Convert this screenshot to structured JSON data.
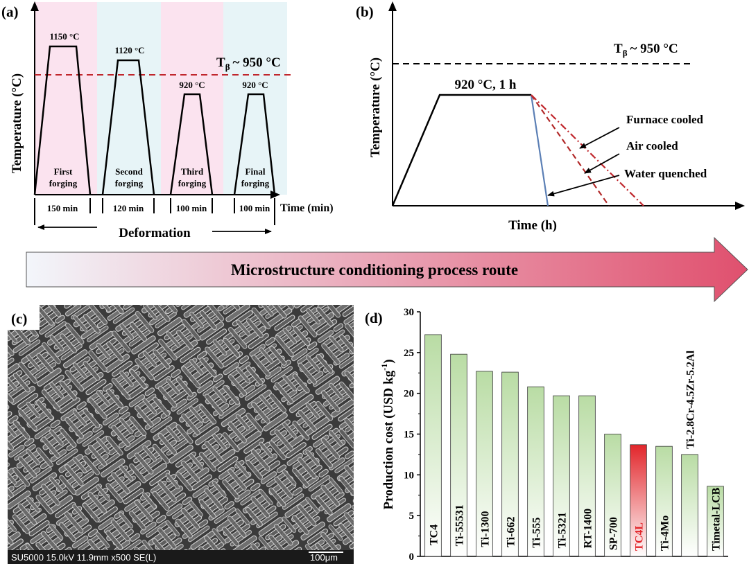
{
  "panel_a": {
    "label": "(a)",
    "ylabel": "Temperature (°C)",
    "xlabel": "Time (min)",
    "tbeta": "T",
    "tbeta_sub": "β",
    "tbeta_value": "~ 950 °C",
    "deformation": "Deformation",
    "steps": [
      {
        "temp": "1150 °C",
        "name1": "First",
        "name2": "forging",
        "duration": "150 min"
      },
      {
        "temp": "1120 °C",
        "name1": "Second",
        "name2": "forging",
        "duration": "120 min"
      },
      {
        "temp": "920 °C",
        "name1": "Third",
        "name2": "forging",
        "duration": "100 min"
      },
      {
        "temp": "920 °C",
        "name1": "Final",
        "name2": "forging",
        "duration": "100 min"
      }
    ],
    "band_colors": [
      "#fbe3ef",
      "#e7f4f7",
      "#fbe3ef",
      "#e7f4f7"
    ]
  },
  "panel_b": {
    "label": "(b)",
    "ylabel": "Temperature (°C)",
    "xlabel": "Time (h)",
    "tbeta": "T",
    "tbeta_sub": "β",
    "tbeta_value": "~ 950 °C",
    "hold": "920 °C, 1 h",
    "cooling": [
      "Furnace cooled",
      "Air cooled",
      "Water quenched"
    ],
    "colors": {
      "furnace": "#c0262c",
      "air": "#b22a2a",
      "water": "#5b7fb5"
    }
  },
  "banner": {
    "text": "Microstructure conditioning process route",
    "color_start": "#f3f6fb",
    "color_end": "#e0506e"
  },
  "panel_c": {
    "label": "(c)",
    "info": "SU5000 15.0kV 11.9mm x500 SE(L)",
    "scale": "100μm"
  },
  "panel_d": {
    "label": "(d)",
    "chart_data": {
      "type": "bar",
      "categories": [
        "TC4",
        "Ti-55531",
        "Ti-1300",
        "Ti-662",
        "Ti-555",
        "Ti-5321",
        "RT-1400",
        "SP-700",
        "TC4L",
        "Ti-4Mo",
        "Ti-2.8Cr-4.5Zr-5.2Al",
        "Timetal-LCB"
      ],
      "values": [
        27.2,
        24.8,
        22.7,
        22.6,
        20.8,
        19.7,
        19.7,
        15.0,
        13.7,
        13.5,
        12.5,
        8.6
      ],
      "ylabel": "Production cost (USD kg",
      "ylabel_sup": "-1",
      "ylabel_end": ")",
      "ylim": [
        0,
        30
      ],
      "yticks": [
        "0",
        "5",
        "10",
        "15",
        "20",
        "25",
        "30"
      ],
      "highlight": "TC4L",
      "bar_color": "#b9dca4",
      "highlight_color": "#e2262b"
    }
  }
}
